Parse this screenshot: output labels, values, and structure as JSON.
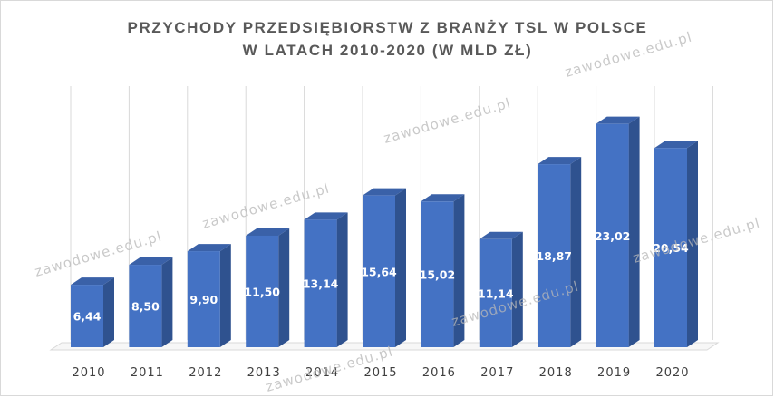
{
  "chart_data": {
    "type": "bar",
    "title_line1": "PRZYCHODY PRZEDSIĘBIORSTW Z BRANŻY TSL W POLSCE",
    "title_line2": "W LATACH 2010-2020 (W MLD ZŁ)",
    "categories": [
      "2010",
      "2011",
      "2012",
      "2013",
      "2014",
      "2015",
      "2016",
      "2017",
      "2018",
      "2019",
      "2020"
    ],
    "values": [
      6.44,
      8.5,
      9.9,
      11.5,
      13.14,
      15.64,
      15.02,
      11.14,
      18.87,
      23.02,
      20.54
    ],
    "value_labels": [
      "6,44",
      "8,50",
      "9,90",
      "11,50",
      "13,14",
      "15,64",
      "15,02",
      "11,14",
      "18,87",
      "23,02",
      "20,54"
    ],
    "xlabel": "",
    "ylabel": "",
    "ylim": [
      0,
      25
    ],
    "grid": true,
    "legend": "none",
    "colors": {
      "bar_front": "#4472c4",
      "bar_side": "#2f528f",
      "bar_top": "#3a61a8",
      "grid": "#d9d9d9"
    }
  },
  "watermark": "zawodowe.edu.pl"
}
